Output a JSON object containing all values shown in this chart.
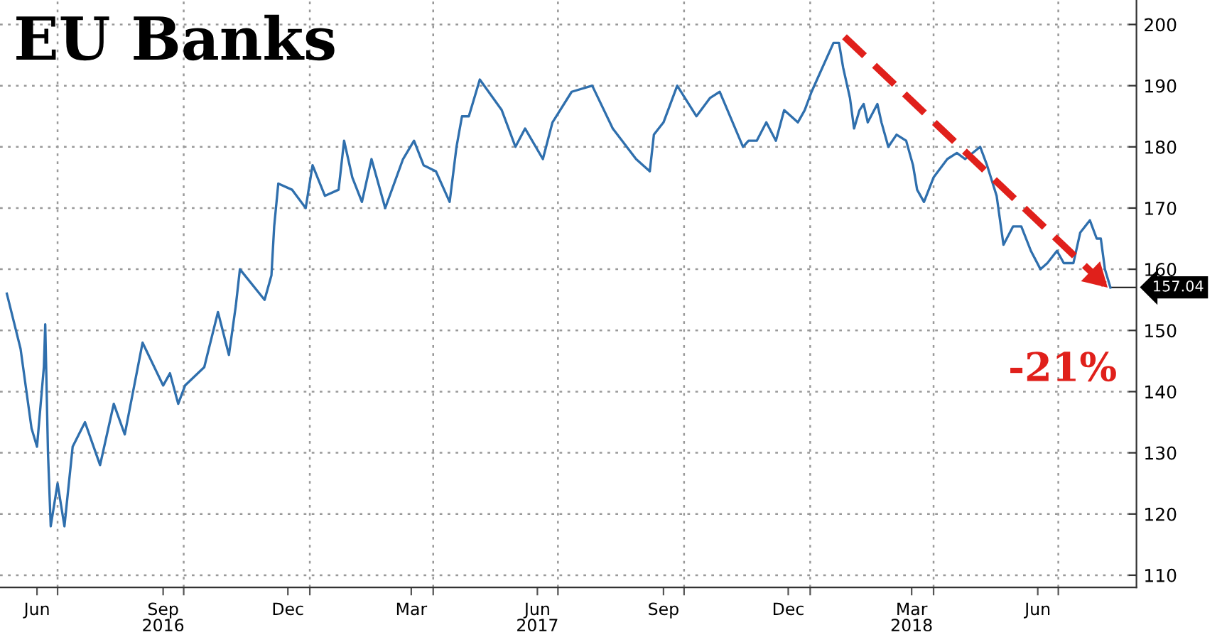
{
  "chart_data": {
    "type": "line",
    "title": "EU Banks",
    "series": [
      {
        "color": "#2f6fad",
        "x": [
          "2016-05-25",
          "2016-06-04",
          "2016-06-12",
          "2016-06-16",
          "2016-06-21",
          "2016-06-22",
          "2016-06-24",
          "2016-06-26",
          "2016-07-01",
          "2016-07-06",
          "2016-07-12",
          "2016-07-21",
          "2016-08-01",
          "2016-08-11",
          "2016-08-19",
          "2016-09-01",
          "2016-09-16",
          "2016-09-21",
          "2016-09-27",
          "2016-10-02",
          "2016-10-16",
          "2016-10-26",
          "2016-11-03",
          "2016-11-08",
          "2016-11-11",
          "2016-11-29",
          "2016-12-04",
          "2016-12-06",
          "2016-12-09",
          "2016-12-19",
          "2016-12-29",
          "2017-01-03",
          "2017-01-12",
          "2017-01-22",
          "2017-01-26",
          "2017-02-01",
          "2017-02-08",
          "2017-02-15",
          "2017-02-25",
          "2017-03-10",
          "2017-03-18",
          "2017-03-25",
          "2017-04-03",
          "2017-04-13",
          "2017-04-18",
          "2017-04-22",
          "2017-04-27",
          "2017-05-05",
          "2017-05-21",
          "2017-05-31",
          "2017-06-07",
          "2017-06-20",
          "2017-06-27",
          "2017-07-11",
          "2017-07-26",
          "2017-08-10",
          "2017-08-27",
          "2017-09-06",
          "2017-09-09",
          "2017-09-16",
          "2017-09-26",
          "2017-10-10",
          "2017-10-20",
          "2017-10-27",
          "2017-11-13",
          "2017-11-17",
          "2017-11-23",
          "2017-11-30",
          "2017-12-07",
          "2017-12-13",
          "2017-12-23",
          "2017-12-28",
          "2018-01-02",
          "2018-01-10",
          "2018-01-18",
          "2018-01-22",
          "2018-01-25",
          "2018-01-30",
          "2018-02-02",
          "2018-02-06",
          "2018-02-09",
          "2018-02-12",
          "2018-02-19",
          "2018-02-22",
          "2018-02-27",
          "2018-03-05",
          "2018-03-12",
          "2018-03-17",
          "2018-03-20",
          "2018-03-25",
          "2018-04-01",
          "2018-04-11",
          "2018-04-18",
          "2018-04-24",
          "2018-05-05",
          "2018-05-10",
          "2018-05-17",
          "2018-05-22",
          "2018-05-29",
          "2018-06-04",
          "2018-06-11",
          "2018-06-18",
          "2018-06-23",
          "2018-06-30",
          "2018-07-05",
          "2018-07-12",
          "2018-07-17",
          "2018-07-24",
          "2018-07-29",
          "2018-08-01",
          "2018-08-04",
          "2018-08-08"
        ],
        "values": [
          156,
          147,
          134,
          131,
          144,
          151,
          130,
          118,
          125,
          118,
          131,
          135,
          128,
          138,
          133,
          148,
          141,
          143,
          138,
          141,
          144,
          153,
          146,
          154,
          160,
          155,
          159,
          167,
          174,
          173,
          170,
          177,
          172,
          173,
          181,
          175,
          171,
          178,
          170,
          178,
          181,
          177,
          176,
          171,
          180,
          185,
          185,
          191,
          186,
          180,
          183,
          178,
          184,
          189,
          190,
          183,
          178,
          176,
          182,
          184,
          190,
          185,
          188,
          189,
          180,
          181,
          181,
          184,
          181,
          186,
          184,
          186,
          189,
          193,
          197,
          197,
          193,
          188,
          183,
          186,
          187,
          184,
          187,
          184,
          180,
          182,
          181,
          177,
          173,
          171,
          175,
          178,
          179,
          178,
          180,
          177,
          172,
          164,
          167,
          167,
          163,
          160,
          161,
          163,
          161,
          161,
          166,
          168,
          165,
          165,
          160,
          157
        ]
      },
      {
        "type": "line",
        "color": "#e0201b",
        "line_style": "dashed",
        "x": [
          "2018-01-26",
          "2018-08-06"
        ],
        "values": [
          198,
          157
        ]
      }
    ],
    "annotations": [
      {
        "text": "157.04",
        "x": "2018-08-08",
        "y": 157.04
      },
      "-21%"
    ],
    "xlim": [
      "2016-05-20",
      "2018-08-27"
    ],
    "xticks": [
      {
        "value": "2016-06-16",
        "label": "Jun"
      },
      {
        "value": "2016-07-01",
        "label": null
      },
      {
        "value": "2016-09-16",
        "label": "Sep\n2016"
      },
      {
        "value": "2016-10-01",
        "label": null
      },
      {
        "value": "2016-12-16",
        "label": "Dec"
      },
      {
        "value": "2017-01-01",
        "label": null
      },
      {
        "value": "2017-03-16",
        "label": "Mar"
      },
      {
        "value": "2017-04-01",
        "label": null
      },
      {
        "value": "2017-06-16",
        "label": "Jun\n2017"
      },
      {
        "value": "2017-07-01",
        "label": null
      },
      {
        "value": "2017-09-16",
        "label": "Sep"
      },
      {
        "value": "2017-10-01",
        "label": null
      },
      {
        "value": "2017-12-16",
        "label": "Dec"
      },
      {
        "value": "2018-01-01",
        "label": null
      },
      {
        "value": "2018-03-16",
        "label": "Mar\n2018"
      },
      {
        "value": "2018-04-01",
        "label": null
      },
      {
        "value": "2018-06-16",
        "label": "Jun"
      },
      {
        "value": "2018-07-01",
        "label": null
      }
    ],
    "ylim": [
      108,
      204
    ],
    "yticks": [
      110,
      120,
      130,
      140,
      150,
      160,
      170,
      180,
      190,
      200
    ],
    "grid": true,
    "legend": false
  }
}
